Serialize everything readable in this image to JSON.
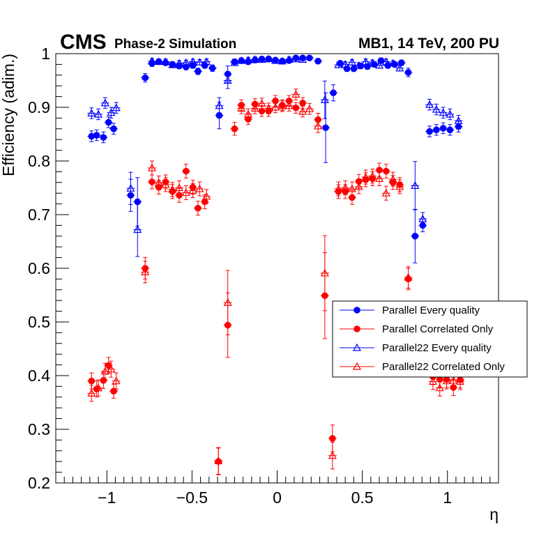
{
  "header": {
    "experiment": "CMS",
    "subtitle": "Phase-2 Simulation",
    "conditions": "MB1, 14 TeV, 200 PU"
  },
  "colors": {
    "blue": "#0000ff",
    "red": "#ff0000",
    "axis": "#000000"
  },
  "chart_data": {
    "type": "scatter",
    "xlabel": "η",
    "ylabel": "Efficiency (adim.)",
    "xlim": [
      -1.3,
      1.3
    ],
    "ylim": [
      0.2,
      1.0
    ],
    "x_ticks": [
      -1,
      -0.5,
      0,
      0.5,
      1
    ],
    "x_tick_labels": [
      "−1",
      "−0.5",
      "0",
      "0.5",
      "1"
    ],
    "y_ticks": [
      0.2,
      0.3,
      0.4,
      0.5,
      0.6,
      0.7,
      0.8,
      0.9,
      1.0
    ],
    "y_tick_labels": [
      "0.2",
      "0.3",
      "0.4",
      "0.5",
      "0.6",
      "0.7",
      "0.8",
      "0.9",
      "1"
    ],
    "grid": false,
    "legend_position": "right",
    "series": [
      {
        "name": "Parallel Every quality",
        "color": "#0000ff",
        "marker": "circle-filled",
        "points": [
          [
            -1.09,
            0.846,
            0.01
          ],
          [
            -1.06,
            0.848,
            0.01
          ],
          [
            -1.02,
            0.844,
            0.01
          ],
          [
            -0.99,
            0.872,
            0.01
          ],
          [
            -0.96,
            0.86,
            0.01
          ],
          [
            -0.86,
            0.736,
            0.03
          ],
          [
            -0.82,
            0.724,
            0.045
          ],
          [
            -0.775,
            0.955,
            0.008
          ],
          [
            -0.735,
            0.982,
            0.006
          ],
          [
            -0.695,
            0.985,
            0.005
          ],
          [
            -0.655,
            0.983,
            0.005
          ],
          [
            -0.615,
            0.98,
            0.005
          ],
          [
            -0.575,
            0.977,
            0.005
          ],
          [
            -0.535,
            0.975,
            0.005
          ],
          [
            -0.495,
            0.978,
            0.005
          ],
          [
            -0.465,
            0.967,
            0.006
          ],
          [
            -0.425,
            0.978,
            0.005
          ],
          [
            -0.38,
            0.973,
            0.006
          ],
          [
            -0.34,
            0.885,
            0.025
          ],
          [
            -0.29,
            0.962,
            0.015
          ],
          [
            -0.25,
            0.985,
            0.005
          ],
          [
            -0.21,
            0.987,
            0.005
          ],
          [
            -0.17,
            0.985,
            0.005
          ],
          [
            -0.13,
            0.988,
            0.005
          ],
          [
            -0.09,
            0.99,
            0.004
          ],
          [
            -0.05,
            0.99,
            0.004
          ],
          [
            -0.01,
            0.988,
            0.004
          ],
          [
            0.03,
            0.986,
            0.004
          ],
          [
            0.07,
            0.987,
            0.004
          ],
          [
            0.11,
            0.992,
            0.004
          ],
          [
            0.15,
            0.992,
            0.004
          ],
          [
            0.19,
            0.992,
            0.004
          ],
          [
            0.24,
            0.986,
            0.005
          ],
          [
            0.285,
            0.862,
            0.065
          ],
          [
            0.33,
            0.927,
            0.015
          ],
          [
            0.37,
            0.982,
            0.005
          ],
          [
            0.41,
            0.972,
            0.005
          ],
          [
            0.45,
            0.972,
            0.005
          ],
          [
            0.49,
            0.977,
            0.005
          ],
          [
            0.53,
            0.976,
            0.005
          ],
          [
            0.57,
            0.98,
            0.005
          ],
          [
            0.61,
            0.987,
            0.005
          ],
          [
            0.65,
            0.978,
            0.005
          ],
          [
            0.69,
            0.98,
            0.005
          ],
          [
            0.73,
            0.983,
            0.005
          ],
          [
            0.77,
            0.965,
            0.008
          ],
          [
            0.81,
            0.66,
            0.05
          ],
          [
            0.855,
            0.68,
            0.012
          ],
          [
            0.895,
            0.855,
            0.01
          ],
          [
            0.935,
            0.858,
            0.01
          ],
          [
            0.975,
            0.861,
            0.01
          ],
          [
            1.015,
            0.858,
            0.01
          ],
          [
            1.065,
            0.864,
            0.01
          ]
        ]
      },
      {
        "name": "Parallel Correlated Only",
        "color": "#ff0000",
        "marker": "circle-filled",
        "points": [
          [
            -1.09,
            0.39,
            0.015
          ],
          [
            -1.06,
            0.375,
            0.015
          ],
          [
            -1.02,
            0.391,
            0.015
          ],
          [
            -0.99,
            0.419,
            0.015
          ],
          [
            -0.96,
            0.371,
            0.013
          ],
          [
            -0.775,
            0.6,
            0.02
          ],
          [
            -0.735,
            0.761,
            0.013
          ],
          [
            -0.695,
            0.751,
            0.013
          ],
          [
            -0.655,
            0.761,
            0.013
          ],
          [
            -0.615,
            0.743,
            0.013
          ],
          [
            -0.575,
            0.736,
            0.013
          ],
          [
            -0.535,
            0.781,
            0.013
          ],
          [
            -0.495,
            0.751,
            0.013
          ],
          [
            -0.465,
            0.712,
            0.013
          ],
          [
            -0.425,
            0.724,
            0.013
          ],
          [
            -0.345,
            0.24,
            0.025
          ],
          [
            -0.29,
            0.494,
            0.06
          ],
          [
            -0.25,
            0.86,
            0.012
          ],
          [
            -0.21,
            0.904,
            0.01
          ],
          [
            -0.17,
            0.878,
            0.01
          ],
          [
            -0.13,
            0.906,
            0.01
          ],
          [
            -0.09,
            0.893,
            0.01
          ],
          [
            -0.05,
            0.893,
            0.01
          ],
          [
            -0.01,
            0.912,
            0.01
          ],
          [
            0.03,
            0.904,
            0.01
          ],
          [
            0.07,
            0.912,
            0.01
          ],
          [
            0.11,
            0.899,
            0.01
          ],
          [
            0.15,
            0.908,
            0.01
          ],
          [
            0.24,
            0.877,
            0.012
          ],
          [
            0.28,
            0.549,
            0.08
          ],
          [
            0.325,
            0.283,
            0.025
          ],
          [
            0.36,
            0.743,
            0.013
          ],
          [
            0.4,
            0.743,
            0.013
          ],
          [
            0.44,
            0.732,
            0.013
          ],
          [
            0.48,
            0.762,
            0.013
          ],
          [
            0.52,
            0.765,
            0.013
          ],
          [
            0.56,
            0.767,
            0.013
          ],
          [
            0.6,
            0.783,
            0.013
          ],
          [
            0.64,
            0.781,
            0.013
          ],
          [
            0.68,
            0.76,
            0.013
          ],
          [
            0.72,
            0.756,
            0.013
          ],
          [
            0.77,
            0.58,
            0.02
          ],
          [
            0.915,
            0.398,
            0.015
          ],
          [
            0.955,
            0.393,
            0.015
          ],
          [
            0.995,
            0.393,
            0.015
          ],
          [
            1.035,
            0.378,
            0.015
          ],
          [
            1.075,
            0.392,
            0.015
          ]
        ]
      },
      {
        "name": "Parallel22 Every quality",
        "color": "#0000ff",
        "marker": "triangle-open",
        "points": [
          [
            -1.09,
            0.889,
            0.01
          ],
          [
            -1.05,
            0.887,
            0.01
          ],
          [
            -1.01,
            0.908,
            0.01
          ],
          [
            -0.975,
            0.89,
            0.01
          ],
          [
            -0.945,
            0.899,
            0.01
          ],
          [
            -0.86,
            0.749,
            0.03
          ],
          [
            -0.82,
            0.672,
            0.05
          ],
          [
            -0.735,
            0.986,
            0.005
          ],
          [
            -0.695,
            0.985,
            0.005
          ],
          [
            -0.655,
            0.985,
            0.005
          ],
          [
            -0.615,
            0.979,
            0.005
          ],
          [
            -0.575,
            0.982,
            0.005
          ],
          [
            -0.535,
            0.983,
            0.005
          ],
          [
            -0.495,
            0.985,
            0.005
          ],
          [
            -0.455,
            0.984,
            0.005
          ],
          [
            -0.415,
            0.985,
            0.005
          ],
          [
            -0.34,
            0.903,
            0.015
          ],
          [
            -0.29,
            0.95,
            0.015
          ],
          [
            -0.25,
            0.983,
            0.005
          ],
          [
            -0.21,
            0.987,
            0.005
          ],
          [
            -0.17,
            0.988,
            0.005
          ],
          [
            -0.13,
            0.989,
            0.005
          ],
          [
            -0.09,
            0.989,
            0.005
          ],
          [
            -0.05,
            0.99,
            0.005
          ],
          [
            -0.01,
            0.987,
            0.005
          ],
          [
            0.03,
            0.986,
            0.005
          ],
          [
            0.07,
            0.989,
            0.005
          ],
          [
            0.11,
            0.99,
            0.005
          ],
          [
            0.15,
            0.989,
            0.005
          ],
          [
            0.28,
            0.914,
            0.035
          ],
          [
            0.36,
            0.979,
            0.005
          ],
          [
            0.4,
            0.98,
            0.005
          ],
          [
            0.44,
            0.984,
            0.005
          ],
          [
            0.48,
            0.978,
            0.005
          ],
          [
            0.52,
            0.985,
            0.005
          ],
          [
            0.56,
            0.983,
            0.005
          ],
          [
            0.6,
            0.978,
            0.005
          ],
          [
            0.64,
            0.985,
            0.005
          ],
          [
            0.68,
            0.982,
            0.005
          ],
          [
            0.72,
            0.973,
            0.005
          ],
          [
            0.81,
            0.754,
            0.045
          ],
          [
            0.855,
            0.692,
            0.012
          ],
          [
            0.895,
            0.905,
            0.01
          ],
          [
            0.935,
            0.896,
            0.01
          ],
          [
            0.975,
            0.89,
            0.01
          ],
          [
            1.015,
            0.887,
            0.01
          ],
          [
            1.065,
            0.875,
            0.01
          ]
        ]
      },
      {
        "name": "Parallel22 Correlated Only",
        "color": "#ff0000",
        "marker": "triangle-open",
        "points": [
          [
            -1.09,
            0.367,
            0.015
          ],
          [
            -1.05,
            0.377,
            0.015
          ],
          [
            -1.01,
            0.408,
            0.015
          ],
          [
            -0.975,
            0.412,
            0.015
          ],
          [
            -0.945,
            0.39,
            0.015
          ],
          [
            -0.775,
            0.593,
            0.02
          ],
          [
            -0.735,
            0.787,
            0.013
          ],
          [
            -0.695,
            0.759,
            0.013
          ],
          [
            -0.655,
            0.756,
            0.013
          ],
          [
            -0.615,
            0.747,
            0.013
          ],
          [
            -0.575,
            0.75,
            0.013
          ],
          [
            -0.535,
            0.741,
            0.013
          ],
          [
            -0.495,
            0.745,
            0.013
          ],
          [
            -0.455,
            0.748,
            0.013
          ],
          [
            -0.415,
            0.734,
            0.013
          ],
          [
            -0.345,
            0.241,
            0.025
          ],
          [
            -0.29,
            0.536,
            0.06
          ],
          [
            -0.21,
            0.898,
            0.01
          ],
          [
            -0.17,
            0.887,
            0.01
          ],
          [
            -0.13,
            0.898,
            0.01
          ],
          [
            -0.09,
            0.907,
            0.01
          ],
          [
            -0.05,
            0.898,
            0.01
          ],
          [
            -0.01,
            0.9,
            0.01
          ],
          [
            0.03,
            0.902,
            0.01
          ],
          [
            0.07,
            0.903,
            0.01
          ],
          [
            0.11,
            0.924,
            0.01
          ],
          [
            0.15,
            0.892,
            0.01
          ],
          [
            0.19,
            0.897,
            0.01
          ],
          [
            0.24,
            0.865,
            0.012
          ],
          [
            0.28,
            0.591,
            0.07
          ],
          [
            0.325,
            0.251,
            0.025
          ],
          [
            0.36,
            0.748,
            0.013
          ],
          [
            0.4,
            0.75,
            0.013
          ],
          [
            0.44,
            0.748,
            0.013
          ],
          [
            0.48,
            0.752,
            0.013
          ],
          [
            0.52,
            0.77,
            0.013
          ],
          [
            0.56,
            0.772,
            0.013
          ],
          [
            0.6,
            0.767,
            0.013
          ],
          [
            0.64,
            0.74,
            0.013
          ],
          [
            0.68,
            0.766,
            0.013
          ],
          [
            0.72,
            0.752,
            0.013
          ],
          [
            0.77,
            0.583,
            0.02
          ],
          [
            0.915,
            0.389,
            0.015
          ],
          [
            0.955,
            0.377,
            0.015
          ],
          [
            0.995,
            0.39,
            0.015
          ],
          [
            1.035,
            0.391,
            0.015
          ],
          [
            1.075,
            0.389,
            0.015
          ]
        ]
      }
    ]
  }
}
